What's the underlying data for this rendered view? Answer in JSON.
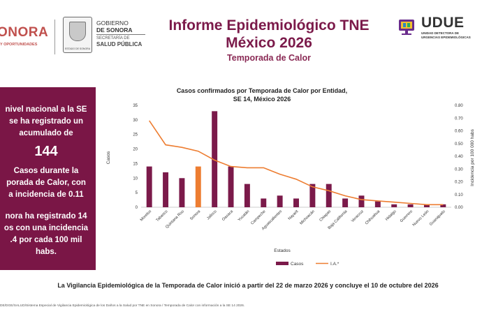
{
  "header": {
    "sonora_logo": "ONORA",
    "sonora_tagline": "Y OPORTUNIDADES",
    "seal_caption": "ESTADO DE SONORA",
    "gov_line1": "GOBIERNO",
    "gov_line2": "DE SONORA",
    "gov_line3": "SECRETARÍA DE",
    "gov_line4": "SALUD PÚBLICA",
    "title_line1": "Informe Epidemiológico TNE",
    "title_line2": "México 2026",
    "subtitle": "Temporada de Calor",
    "udue_name": "UDUE",
    "udue_sub1": "UNIDAD DETECTORA DE",
    "udue_sub2": "URGENCIAS EPIDEMIOLÓGICAS"
  },
  "panel": {
    "line1": "nivel nacional a la SE",
    "line2": "se ha registrado un",
    "line3": "acumulado de",
    "number": "144",
    "line4": "Casos durante la",
    "line5": "porada de Calor, con",
    "line6": "a incidencia de 0.11",
    "line7": "nora ha registrado 14",
    "line8": "os con una incidencia",
    "line9": ".4 por cada 100 mil",
    "line10": "habs."
  },
  "chart_data": {
    "type": "bar",
    "title_line1": "Casos confirmados por Temporada de Calor por Entidad,",
    "title_line2": "SE 14, México 2026",
    "xlabel": "Estados",
    "ylabel": "Casos",
    "y2label": "Incidencia por 100 000 habs",
    "ylim": [
      0,
      35
    ],
    "y2lim": [
      0,
      0.8
    ],
    "yticks": [
      "0",
      "5",
      "10",
      "15",
      "20",
      "25",
      "30",
      "35"
    ],
    "y2ticks": [
      "0.00",
      "0.10",
      "0.20",
      "0.30",
      "0.40",
      "0.50",
      "0.60",
      "0.70",
      "0.80"
    ],
    "categories": [
      "Morelos",
      "Tabasco",
      "Quintana Roo",
      "Sonora",
      "Jalisco",
      "Oaxaca",
      "Yucatán",
      "Campeche",
      "Aguascalientes",
      "Nayarit",
      "Michoacán",
      "Chiapas",
      "Baja California",
      "Veracruz",
      "Chihuahua",
      "Hidalgo",
      "Guerrero",
      "Nuevo León",
      "Guanajuato"
    ],
    "series": [
      {
        "name": "Casos",
        "kind": "bar",
        "axis": "left",
        "color": "#7b1a4a",
        "highlight_color": "#ed7d31",
        "highlight_category": "Sonora",
        "values": [
          14,
          12,
          10,
          14,
          33,
          14,
          8,
          3,
          4,
          3,
          8,
          8,
          3,
          4,
          2,
          1,
          1,
          1,
          1
        ]
      },
      {
        "name": "I.A.*",
        "kind": "line",
        "axis": "right",
        "color": "#ed7d31",
        "values": [
          0.68,
          0.49,
          0.47,
          0.44,
          0.37,
          0.32,
          0.31,
          0.31,
          0.26,
          0.22,
          0.16,
          0.13,
          0.09,
          0.06,
          0.05,
          0.04,
          0.03,
          0.02,
          0.02
        ]
      }
    ],
    "legend_position": "bottom"
  },
  "bottom_note": "La Vigilancia Epidemiológica de la Temporada de Calor inició a partir del 22 de marzo 2026 y concluye el 10 de octubre del 2026",
  "footer_note": "DE/DGE/SALUD/Sistema Especial de Vigilancia Epidemiológica de los Daños a la Salud por TNE en Sonora / Temporada de Calor con información a la SE 14 2026."
}
